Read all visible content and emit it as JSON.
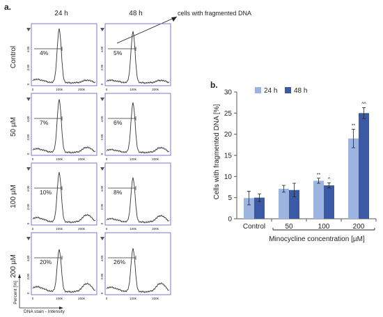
{
  "panel_a": {
    "label": "a.",
    "col_headers": [
      "24 h",
      "48 h"
    ],
    "row_labels": [
      "Control",
      "50 µM",
      "100 µM",
      "200 µM"
    ],
    "percents": [
      [
        "4%",
        "5%"
      ],
      [
        "7%",
        "6%"
      ],
      [
        "10%",
        "8%"
      ],
      [
        "20%",
        "26%"
      ]
    ],
    "annotation": "cells with fragmented DNA",
    "x_ticks": [
      "0",
      "100k",
      "200k"
    ],
    "y_ticks": [
      "0",
      "2.00",
      "4.00"
    ],
    "xlabel": "DNA stain - Intensity",
    "ylabel": "Percent [%]",
    "colors": {
      "frame": "#7777cc",
      "trace": "#333333"
    }
  },
  "panel_b": {
    "label": "b."
  },
  "chart_data": {
    "type": "bar",
    "categories": [
      "Control",
      "50",
      "100",
      "200"
    ],
    "series": [
      {
        "name": "24 h",
        "values": [
          4.9,
          7.1,
          9.0,
          19.0
        ],
        "errors": [
          1.6,
          0.8,
          0.6,
          2.2
        ],
        "color": "#9db3e0"
      },
      {
        "name": "48 h",
        "values": [
          5.0,
          6.8,
          7.9,
          25.0
        ],
        "errors": [
          0.9,
          1.6,
          0.6,
          1.3
        ],
        "color": "#3a5aa5"
      }
    ],
    "significance": [
      [
        "",
        "",
        "**",
        "**"
      ],
      [
        "",
        "",
        "^",
        "^^"
      ]
    ],
    "ylabel": "Cells with fragmented DNA [%]",
    "xlabel": "Minocycline concentration [µM]",
    "ylim": [
      0,
      30
    ],
    "yticks": [
      "0",
      "5",
      "10",
      "15",
      "20",
      "25",
      "30"
    ],
    "legend_position": "top-left",
    "grid": false
  }
}
